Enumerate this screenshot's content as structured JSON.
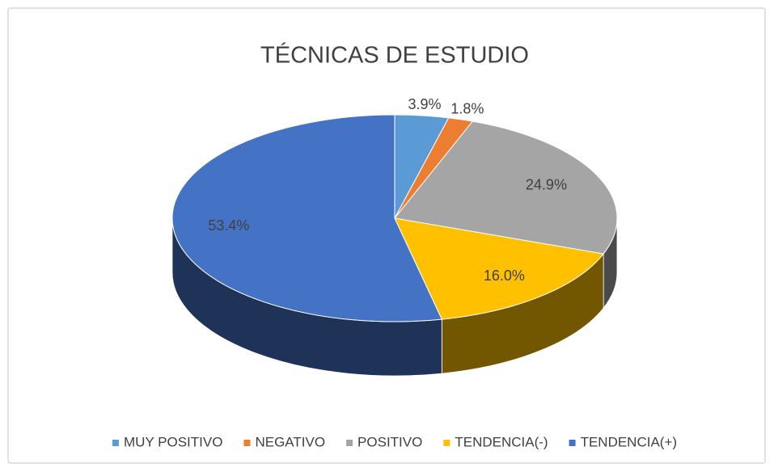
{
  "chart_data": {
    "type": "pie",
    "title": "TÉCNICAS DE ESTUDIO",
    "categories": [
      "MUY POSITIVO",
      "NEGATIVO",
      "POSITIVO",
      "TENDENCIA(-)",
      "TENDENCIA(+)"
    ],
    "values": [
      3.9,
      1.8,
      24.9,
      16.0,
      53.4
    ],
    "value_labels": [
      "3.9%",
      "1.8%",
      "24.9%",
      "16.0%",
      "53.4%"
    ],
    "colors": [
      "#5b9bd5",
      "#ed7d31",
      "#a5a5a5",
      "#ffc000",
      "#4472c4"
    ],
    "legend": "bottom"
  }
}
